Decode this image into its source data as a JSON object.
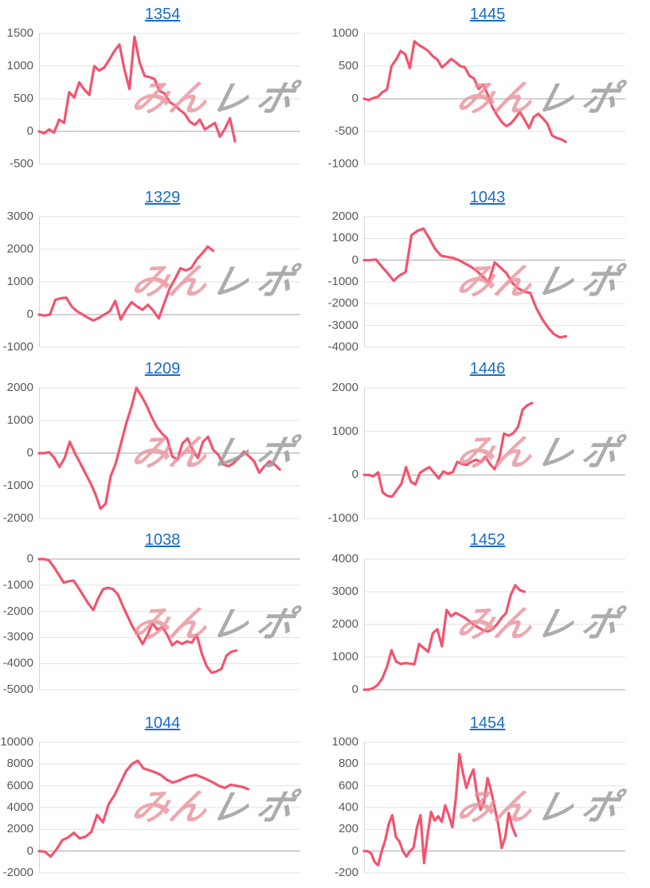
{
  "page": {
    "background": "#ffffff"
  },
  "styles": {
    "title_color": "#1a6cc8",
    "label_color": "#595959",
    "grid_color": "#e2e2e2",
    "zero_line_color": "#a6a6a6",
    "axis_line_color": "#d6d6d6",
    "line_color": "#f4536e",
    "watermark_pink": "rgba(233,145,155,0.8)",
    "watermark_gray": "rgba(158,158,158,0.85)"
  },
  "watermark": {
    "pink_text": "みん",
    "gray_text": "レポ"
  },
  "chart_data": [
    {
      "type": "line",
      "title": "1354",
      "xlabel": "",
      "ylabel": "",
      "grid": true,
      "legend": false,
      "ylim": [
        -500,
        1500
      ],
      "yticks": [
        -500,
        0,
        500,
        1000,
        1500
      ],
      "x_slots": 53,
      "values": [
        0,
        -30,
        30,
        -20,
        180,
        130,
        600,
        520,
        750,
        640,
        560,
        1000,
        930,
        980,
        1100,
        1230,
        1330,
        950,
        650,
        1450,
        1060,
        850,
        830,
        800,
        620,
        580,
        450,
        400,
        330,
        270,
        150,
        100,
        180,
        30,
        80,
        130,
        -80,
        40,
        200,
        -150
      ]
    },
    {
      "type": "line",
      "title": "1445",
      "xlabel": "",
      "ylabel": "",
      "grid": true,
      "legend": false,
      "ylim": [
        -1000,
        1000
      ],
      "yticks": [
        -1000,
        -500,
        0,
        500,
        1000
      ],
      "x_slots": 58,
      "values": [
        0,
        -20,
        10,
        30,
        100,
        140,
        500,
        600,
        730,
        680,
        470,
        880,
        820,
        780,
        730,
        650,
        600,
        480,
        540,
        610,
        560,
        500,
        480,
        350,
        310,
        150,
        220,
        60,
        -130,
        -250,
        -350,
        -420,
        -380,
        -300,
        -200,
        -320,
        -450,
        -280,
        -230,
        -300,
        -380,
        -560,
        -600,
        -620,
        -660
      ]
    },
    {
      "type": "line",
      "title": "1329",
      "xlabel": "",
      "ylabel": "",
      "grid": true,
      "legend": false,
      "ylim": [
        -1000,
        3000
      ],
      "yticks": [
        -1000,
        0,
        1000,
        2000,
        3000
      ],
      "x_slots": 49,
      "values": [
        0,
        -30,
        0,
        450,
        500,
        520,
        250,
        100,
        0,
        -100,
        -180,
        -100,
        0,
        100,
        420,
        -150,
        150,
        380,
        250,
        150,
        300,
        120,
        -120,
        350,
        800,
        1100,
        1420,
        1350,
        1430,
        1700,
        1880,
        2080,
        1950
      ]
    },
    {
      "type": "line",
      "title": "1043",
      "xlabel": "",
      "ylabel": "",
      "grid": true,
      "legend": false,
      "ylim": [
        -4000,
        2000
      ],
      "yticks": [
        -4000,
        -3000,
        -2000,
        -1000,
        0,
        1000,
        2000
      ],
      "x_slots": 45,
      "values": [
        0,
        0,
        30,
        -300,
        -600,
        -950,
        -700,
        -550,
        1150,
        1350,
        1450,
        1000,
        500,
        200,
        150,
        100,
        0,
        -150,
        -300,
        -500,
        -750,
        -1000,
        -100,
        -350,
        -600,
        -1050,
        -1300,
        -1450,
        -1500,
        -2200,
        -2700,
        -3100,
        -3400,
        -3550,
        -3500
      ]
    },
    {
      "type": "line",
      "title": "1209",
      "xlabel": "",
      "ylabel": "",
      "grid": true,
      "legend": false,
      "ylim": [
        -2000,
        2000
      ],
      "yticks": [
        -2000,
        -1000,
        0,
        1000,
        2000
      ],
      "x_slots": 52,
      "values": [
        0,
        0,
        30,
        -150,
        -420,
        -150,
        350,
        0,
        -300,
        -600,
        -900,
        -1250,
        -1700,
        -1550,
        -700,
        -300,
        300,
        900,
        1400,
        2000,
        1750,
        1450,
        1100,
        800,
        600,
        450,
        -100,
        -200,
        300,
        450,
        100,
        -150,
        350,
        500,
        100,
        -50,
        -350,
        -400,
        -300,
        -150,
        50,
        -100,
        -250,
        -600,
        -400,
        -250,
        -350,
        -500
      ]
    },
    {
      "type": "line",
      "title": "1446",
      "xlabel": "",
      "ylabel": "",
      "grid": true,
      "legend": false,
      "ylim": [
        -1000,
        2000
      ],
      "yticks": [
        -1000,
        0,
        1000,
        2000
      ],
      "x_slots": 57,
      "values": [
        0,
        0,
        -30,
        60,
        -400,
        -480,
        -500,
        -350,
        -200,
        180,
        -150,
        -220,
        50,
        120,
        180,
        50,
        -80,
        80,
        30,
        60,
        300,
        250,
        230,
        300,
        350,
        300,
        420,
        250,
        130,
        400,
        950,
        900,
        960,
        1100,
        1500,
        1600,
        1650
      ]
    },
    {
      "type": "line",
      "title": "1038",
      "xlabel": "",
      "ylabel": "",
      "grid": true,
      "legend": false,
      "ylim": [
        -5000,
        0
      ],
      "yticks": [
        -5000,
        -4000,
        -3000,
        -2000,
        -1000,
        0
      ],
      "x_slots": 54,
      "values": [
        0,
        0,
        -50,
        -300,
        -600,
        -900,
        -850,
        -820,
        -1100,
        -1400,
        -1700,
        -1950,
        -1500,
        -1150,
        -1100,
        -1150,
        -1350,
        -1800,
        -2200,
        -2600,
        -2900,
        -3250,
        -2900,
        -2450,
        -2700,
        -2600,
        -2900,
        -3300,
        -3150,
        -3250,
        -3150,
        -3200,
        -2900,
        -3600,
        -4100,
        -4350,
        -4300,
        -4200,
        -3700,
        -3550,
        -3500
      ]
    },
    {
      "type": "line",
      "title": "1452",
      "xlabel": "",
      "ylabel": "",
      "grid": true,
      "legend": false,
      "ylim": [
        0,
        4000
      ],
      "yticks": [
        0,
        1000,
        2000,
        3000,
        4000
      ],
      "x_slots": 58,
      "values": [
        0,
        0,
        50,
        150,
        350,
        700,
        1210,
        860,
        790,
        815,
        800,
        780,
        1400,
        1280,
        1160,
        1730,
        1850,
        1330,
        2440,
        2250,
        2350,
        2280,
        2200,
        2100,
        1980,
        1900,
        1820,
        1780,
        1850,
        2000,
        2200,
        2350,
        2900,
        3200,
        3050,
        3000
      ]
    },
    {
      "type": "line",
      "title": "1044",
      "xlabel": "",
      "ylabel": "",
      "grid": true,
      "legend": false,
      "ylim": [
        -2000,
        10000
      ],
      "yticks": [
        -2000,
        0,
        2000,
        4000,
        6000,
        8000,
        10000
      ],
      "x_slots": 46,
      "values": [
        0,
        -50,
        -510,
        150,
        1000,
        1250,
        1680,
        1170,
        1320,
        1760,
        3320,
        2640,
        4320,
        5150,
        6250,
        7350,
        8000,
        8300,
        7600,
        7430,
        7230,
        6990,
        6550,
        6300,
        6450,
        6700,
        6900,
        7000,
        6800,
        6550,
        6300,
        6000,
        5800,
        6100,
        6000,
        5900,
        5700
      ]
    },
    {
      "type": "line",
      "title": "1454",
      "xlabel": "",
      "ylabel": "",
      "grid": true,
      "legend": false,
      "ylim": [
        -200,
        1000
      ],
      "yticks": [
        -200,
        0,
        200,
        400,
        600,
        800,
        1000
      ],
      "x_slots": 75,
      "values": [
        0,
        0,
        -20,
        -100,
        -130,
        0,
        100,
        250,
        330,
        130,
        90,
        0,
        -50,
        0,
        30,
        220,
        330,
        -110,
        150,
        360,
        280,
        320,
        270,
        420,
        330,
        220,
        480,
        890,
        720,
        580,
        680,
        750,
        520,
        380,
        450,
        670,
        550,
        400,
        250,
        30,
        130,
        350,
        220,
        140
      ]
    }
  ]
}
